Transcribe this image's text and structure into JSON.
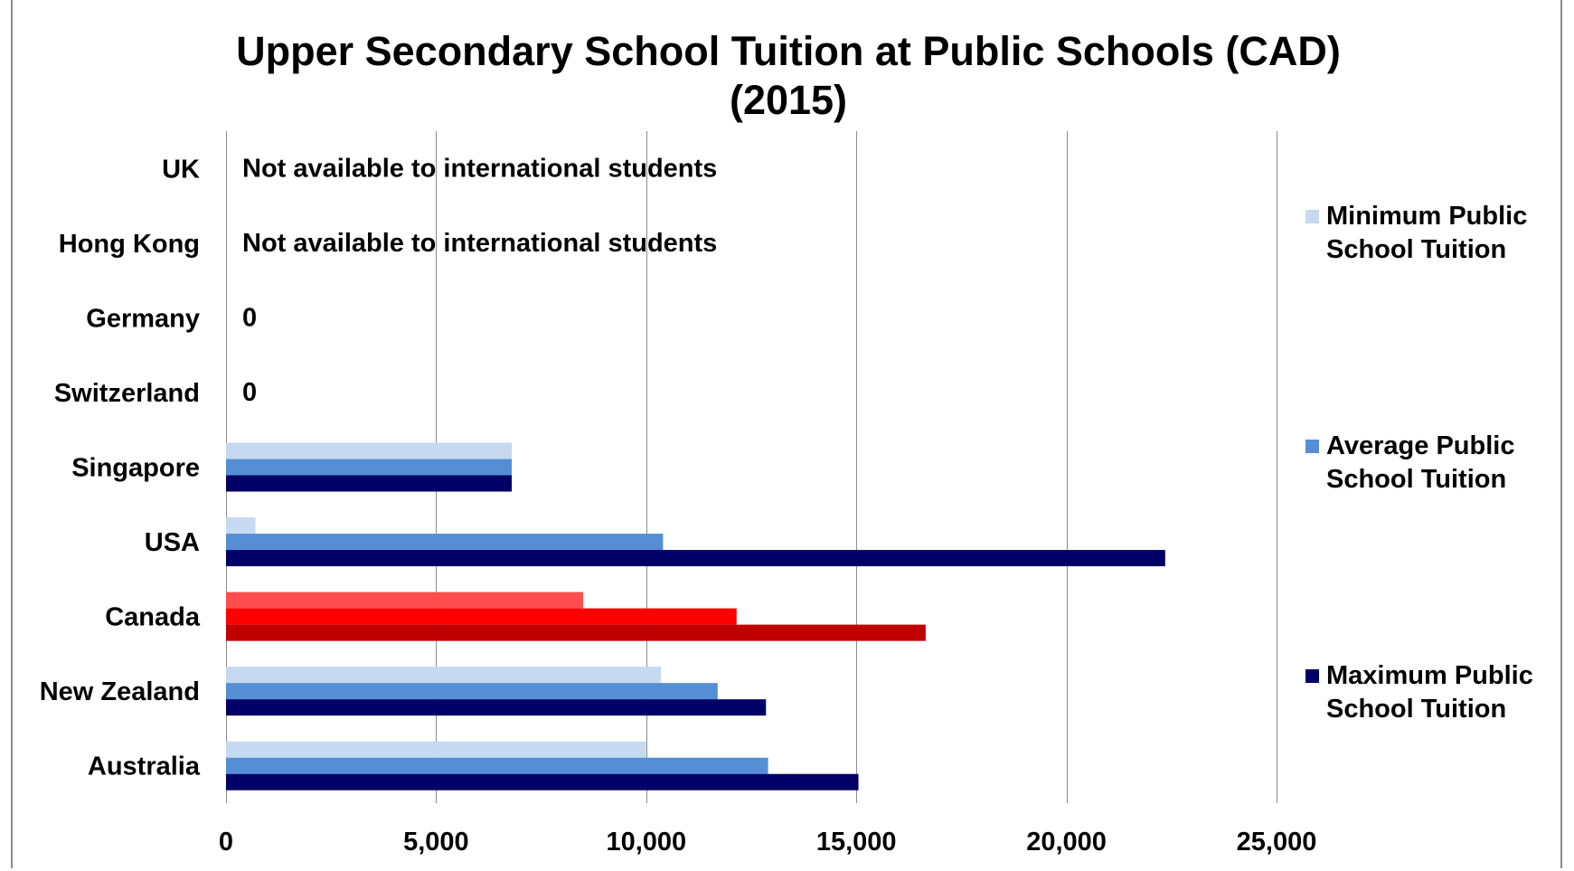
{
  "chart_data": {
    "type": "bar",
    "orientation": "horizontal",
    "title": "Upper Secondary School Tuition at Public Schools (CAD)",
    "subtitle": "(2015)",
    "categories": [
      "UK",
      "Hong Kong",
      "Germany",
      "Switzerland",
      "Singapore",
      "USA",
      "Canada",
      "New Zealand",
      "Australia"
    ],
    "series": [
      {
        "name": "Minimum Public School Tuition",
        "color": "#c6d9f1",
        "values": [
          null,
          null,
          0,
          0,
          6800,
          700,
          8500,
          10350,
          10000
        ]
      },
      {
        "name": "Average Public School Tuition",
        "color": "#558ed5",
        "values": [
          null,
          null,
          0,
          0,
          6800,
          10400,
          12150,
          11700,
          12900
        ]
      },
      {
        "name": "Maximum Public School Tuition",
        "color": "#000066",
        "values": [
          null,
          null,
          0,
          0,
          6800,
          22350,
          16650,
          12850,
          15050
        ]
      }
    ],
    "highlight": {
      "category": "Canada",
      "colors": [
        "#ff4c4c",
        "#ff0000",
        "#c00000"
      ]
    },
    "annotations": [
      {
        "category": "UK",
        "text": "Not available to international students"
      },
      {
        "category": "Hong Kong",
        "text": "Not available to international students"
      },
      {
        "category": "Germany",
        "text": "0"
      },
      {
        "category": "Switzerland",
        "text": "0"
      }
    ],
    "xlim": [
      0,
      25000
    ],
    "xticks": [
      0,
      5000,
      10000,
      15000,
      20000,
      25000
    ],
    "xtick_labels": [
      "0",
      "5,000",
      "10,000",
      "15,000",
      "20,000",
      "25,000"
    ],
    "grid": "vertical",
    "legend": {
      "placement": "right",
      "entries": [
        [
          "Minimum Public",
          "School Tuition"
        ],
        [
          "Average Public",
          "School Tuition"
        ],
        [
          "Maximum Public",
          "School Tuition"
        ]
      ]
    }
  }
}
